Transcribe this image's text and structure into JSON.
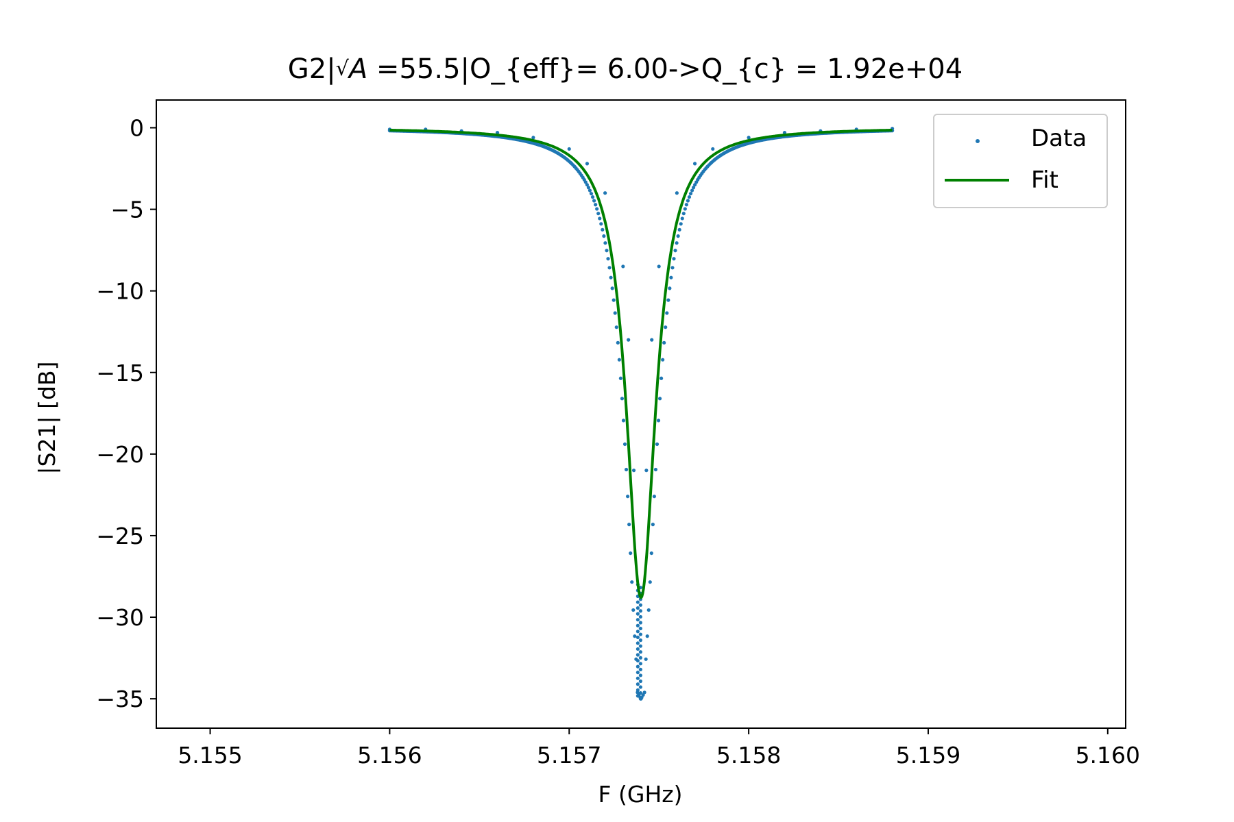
{
  "chart_data": {
    "type": "scatter",
    "title": {
      "prefix": "G2|",
      "sqrt_symbol": "√",
      "sqrt_var": "A",
      "suffix": " =55.5|O_{eff}= 6.00->Q_{c} = 1.92e+04"
    },
    "xlabel": "F (GHz)",
    "ylabel": "|S21| [dB]",
    "xlim": [
      5.1547,
      5.1601
    ],
    "ylim": [
      -36.8,
      1.7
    ],
    "xticks": [
      5.155,
      5.156,
      5.157,
      5.158,
      5.159,
      5.16
    ],
    "xtick_labels": [
      "5.155",
      "5.156",
      "5.157",
      "5.158",
      "5.159",
      "5.160"
    ],
    "yticks": [
      0,
      -5,
      -10,
      -15,
      -20,
      -25,
      -30,
      -35
    ],
    "ytick_labels": [
      "0",
      "−5",
      "−10",
      "−15",
      "−20",
      "−25",
      "−30",
      "−35"
    ],
    "grid": false,
    "legend_position": "top-right",
    "series": [
      {
        "name": "Data",
        "kind": "scatter",
        "color": "#1f77b4",
        "x": [
          5.156,
          5.1562,
          5.1564,
          5.1566,
          5.1568,
          5.157,
          5.1571,
          5.1572,
          5.1573,
          5.15733,
          5.15736,
          5.1574,
          5.15743,
          5.15746,
          5.1575,
          5.1576,
          5.1577,
          5.1578,
          5.158,
          5.1582,
          5.1584,
          5.1586,
          5.1588
        ],
        "y": [
          -0.1,
          -0.1,
          -0.2,
          -0.3,
          -0.6,
          -1.3,
          -2.2,
          -4.0,
          -8.5,
          -13.0,
          -21.0,
          -35.0,
          -21.0,
          -13.0,
          -8.5,
          -4.0,
          -2.2,
          -1.3,
          -0.6,
          -0.3,
          -0.2,
          -0.1,
          -0.05
        ]
      },
      {
        "name": "Fit",
        "kind": "line",
        "color": "#008000",
        "x": [
          5.156,
          5.1564,
          5.1568,
          5.157,
          5.1572,
          5.1573,
          5.15735,
          5.1574,
          5.15745,
          5.1575,
          5.1576,
          5.1578,
          5.158,
          5.1584,
          5.1588
        ],
        "y": [
          -0.1,
          -0.2,
          -0.6,
          -1.3,
          -4.0,
          -8.5,
          -16.0,
          -28.8,
          -16.0,
          -8.5,
          -4.0,
          -1.3,
          -0.6,
          -0.2,
          -0.05
        ]
      }
    ]
  }
}
